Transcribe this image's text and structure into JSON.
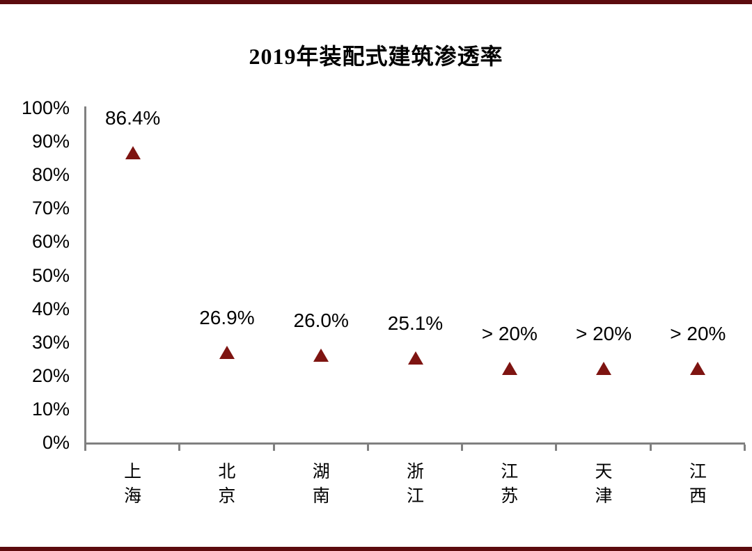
{
  "accent": {
    "bar_color": "#5C0B0E"
  },
  "chart_data": {
    "type": "scatter",
    "title": "2019年装配式建筑渗透率",
    "categories": [
      "上海",
      "北京",
      "湖南",
      "浙江",
      "江苏",
      "天津",
      "江西"
    ],
    "series": [
      {
        "name": "2019年装配式建筑渗透率",
        "values": [
          86.4,
          26.9,
          26.0,
          25.1,
          22,
          22,
          22
        ],
        "point_labels": [
          "86.4%",
          "26.9%",
          "26.0%",
          "25.1%",
          "> 20%",
          "> 20%",
          "> 20%"
        ]
      }
    ],
    "marker": {
      "shape": "triangle-up",
      "color": "#7E1411"
    },
    "ylim": [
      0,
      100
    ],
    "ytick_step": 10,
    "ytick_labels": [
      "0%",
      "10%",
      "20%",
      "30%",
      "40%",
      "50%",
      "60%",
      "70%",
      "80%",
      "90%",
      "100%"
    ],
    "xlabel": "",
    "ylabel": "",
    "grid": false,
    "legend": false,
    "axis_color": "#808080",
    "text_color": "#000000"
  }
}
